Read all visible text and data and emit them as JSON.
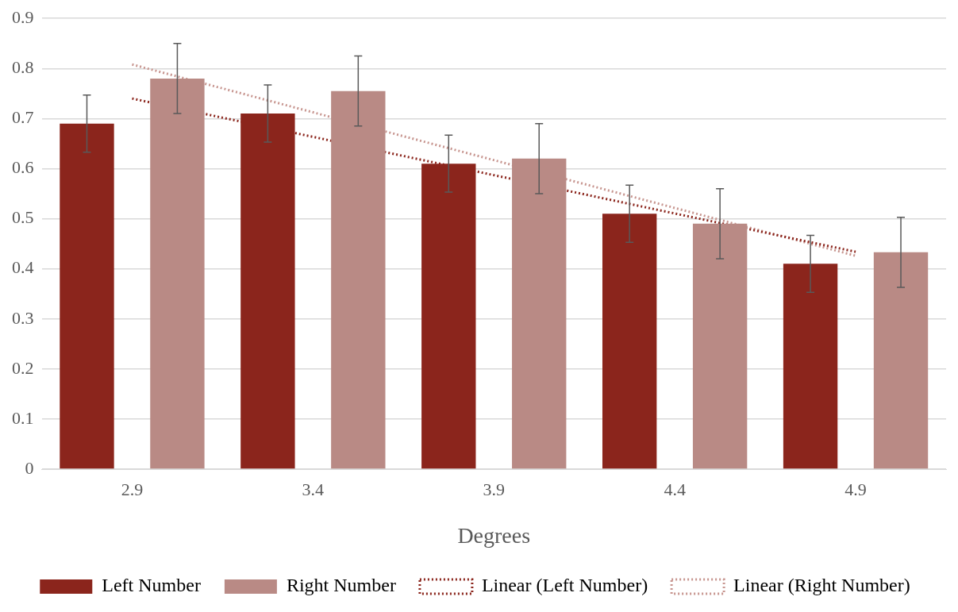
{
  "chart_data": {
    "type": "bar",
    "xlabel": "Degrees",
    "categories": [
      "2.9",
      "3.4",
      "3.9",
      "4.4",
      "4.9"
    ],
    "series": [
      {
        "name": "Left Number",
        "color": "#8b251c",
        "values": [
          0.69,
          0.71,
          0.61,
          0.51,
          0.41
        ],
        "errors": [
          0.057,
          0.057,
          0.057,
          0.057,
          0.057
        ]
      },
      {
        "name": "Right Number",
        "color": "#b98a85",
        "values": [
          0.78,
          0.755,
          0.62,
          0.49,
          0.433
        ],
        "errors": [
          0.07,
          0.07,
          0.07,
          0.07,
          0.07
        ]
      },
      {
        "name": "Linear (Left Number)",
        "type": "line",
        "color": "#8b251c",
        "line_style": "dotted",
        "marker": "none",
        "x": [
          "2.9",
          "4.9"
        ],
        "values": [
          0.74,
          0.434
        ]
      },
      {
        "name": "Linear (Right Number)",
        "type": "line",
        "color": "#c7958f",
        "line_style": "dotted",
        "marker": "none",
        "x": [
          "2.9",
          "4.9"
        ],
        "values": [
          0.808,
          0.426
        ]
      }
    ],
    "ylim": [
      0,
      0.9
    ],
    "yticks": [
      0,
      0.1,
      0.2,
      0.3,
      0.4,
      0.5,
      0.6,
      0.7,
      0.8,
      0.9
    ],
    "grid": "y",
    "legend": "bottom"
  }
}
